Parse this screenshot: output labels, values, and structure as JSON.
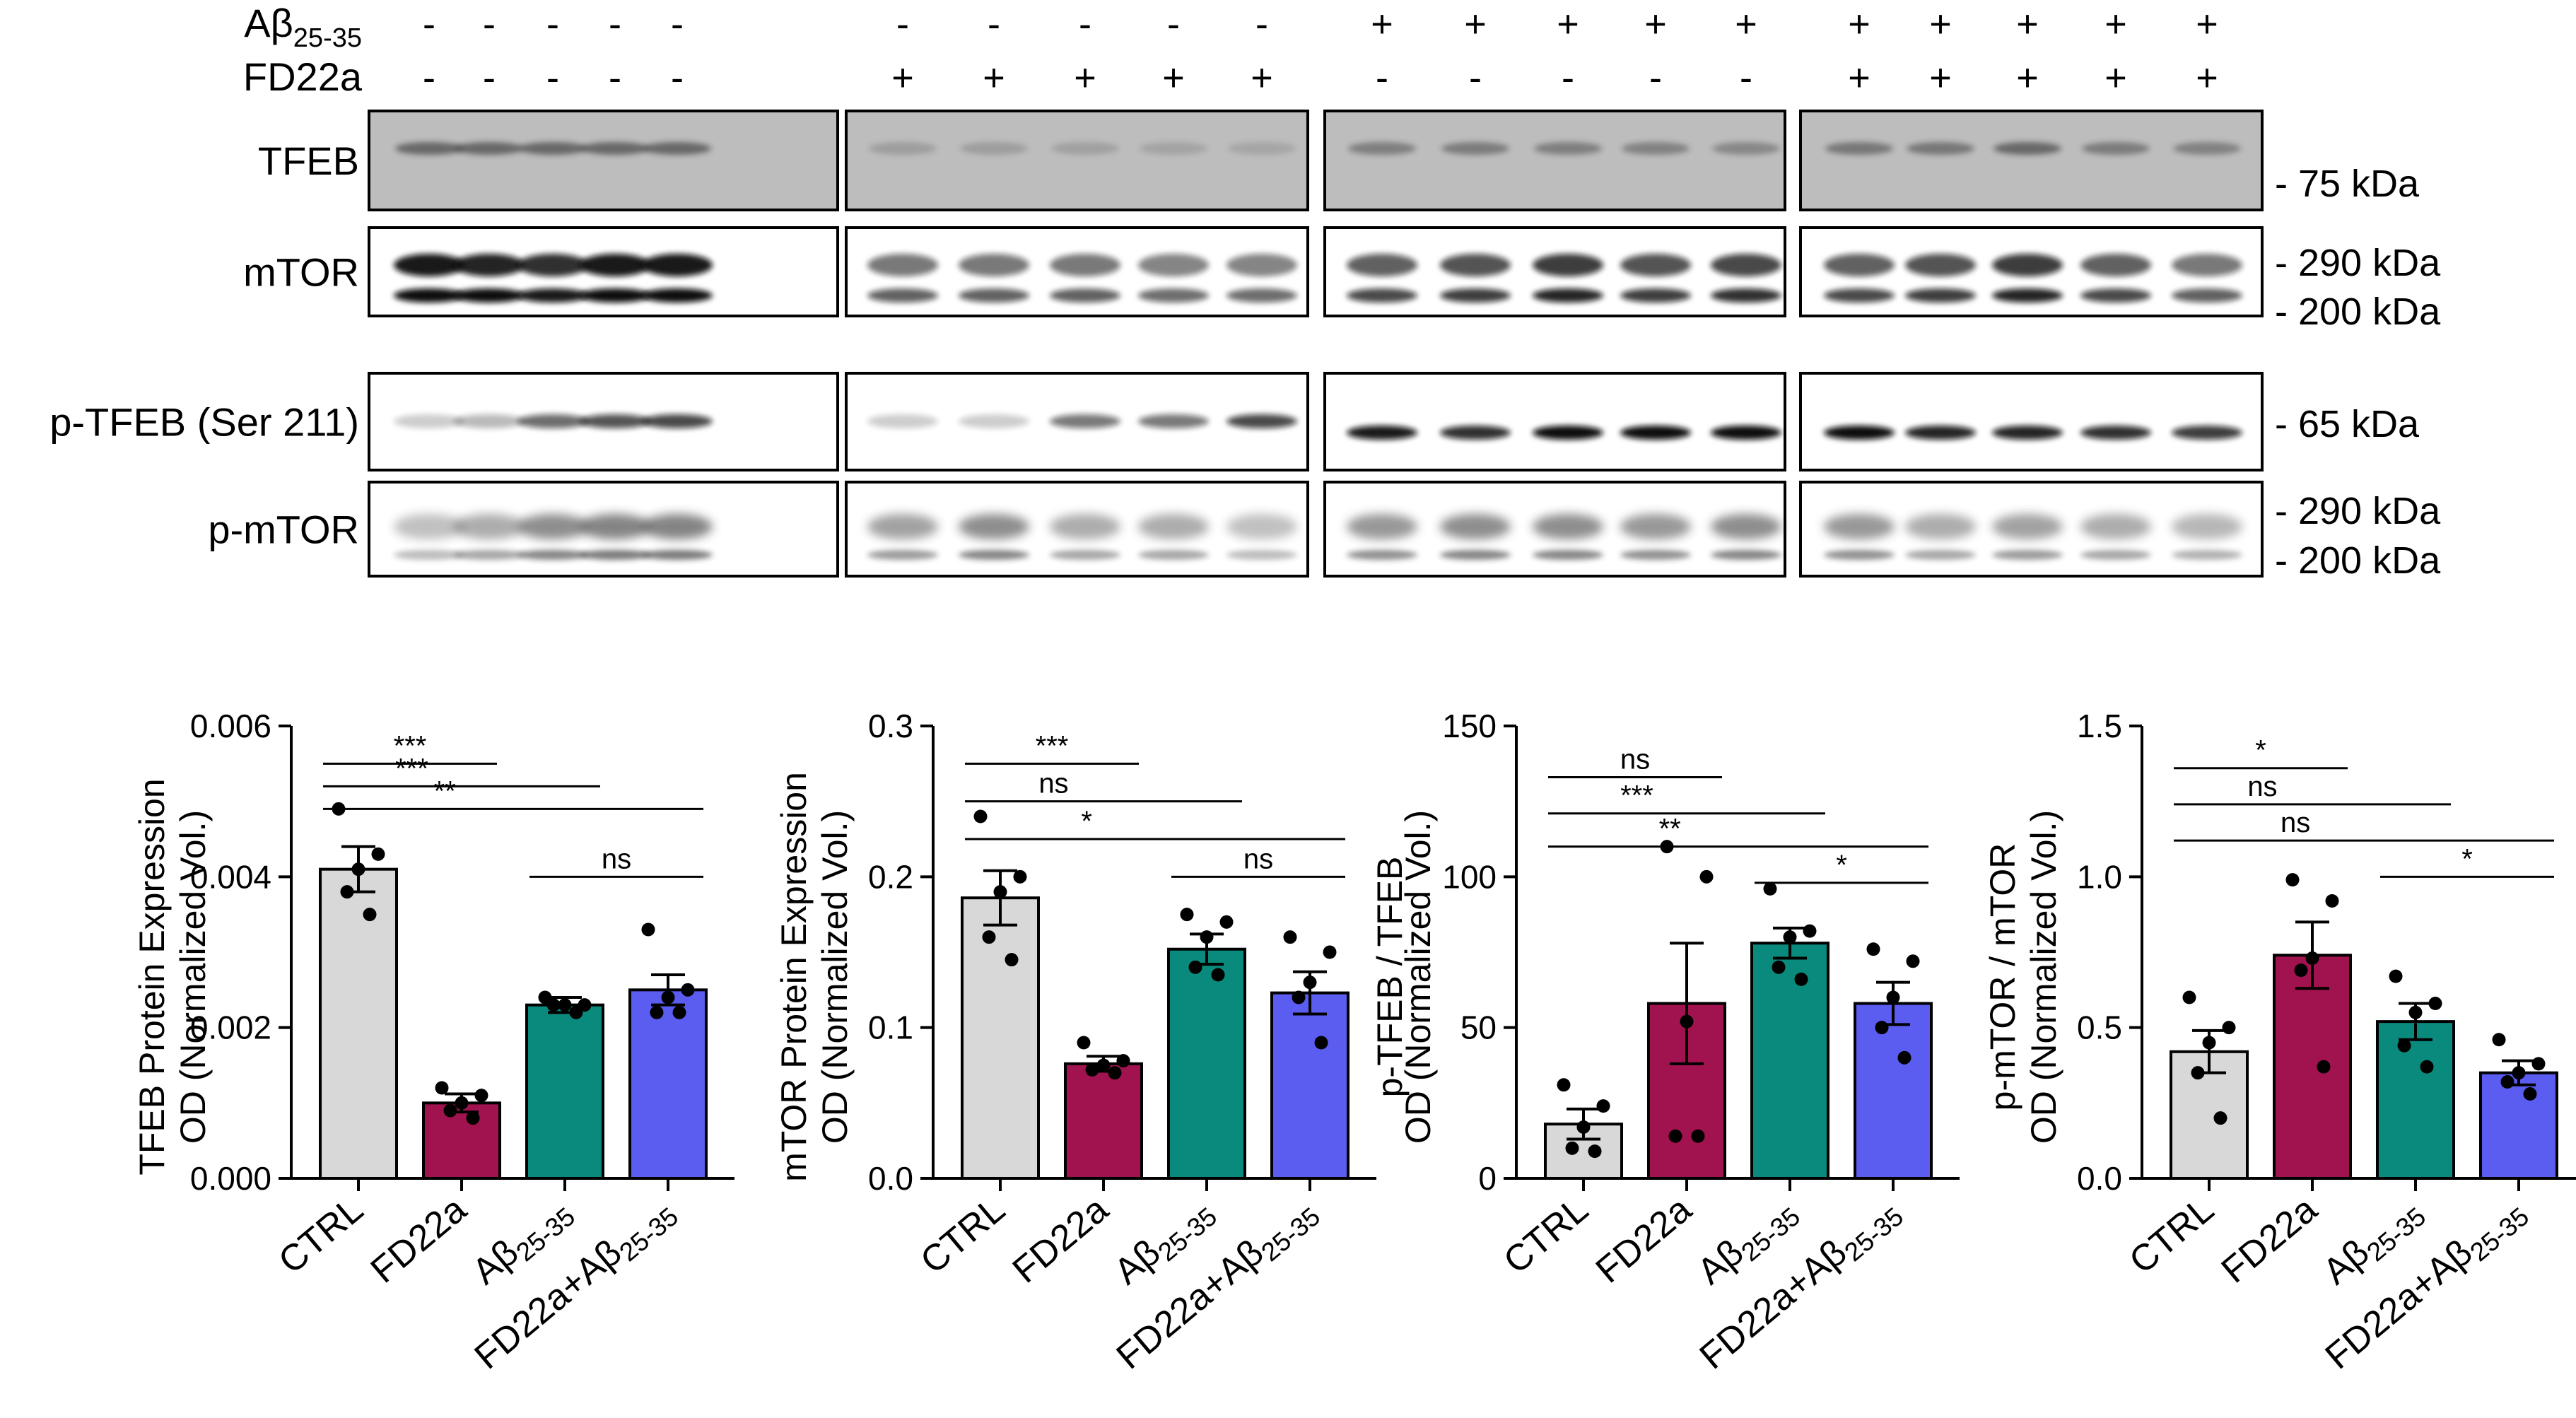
{
  "blot": {
    "treatments": [
      {
        "label": "Aβ",
        "sub": "25-35",
        "signs": [
          "-",
          "-",
          "-",
          "-",
          "-",
          "-",
          "-",
          "-",
          "-",
          "-",
          "+",
          "+",
          "+",
          "+",
          "+",
          "+",
          "+",
          "+",
          "+",
          "+"
        ]
      },
      {
        "label": "FD22a",
        "sub": "",
        "signs": [
          "-",
          "-",
          "-",
          "-",
          "-",
          "+",
          "+",
          "+",
          "+",
          "+",
          "-",
          "-",
          "-",
          "-",
          "-",
          "+",
          "+",
          "+",
          "+",
          "+"
        ]
      }
    ],
    "rows": [
      {
        "label": "TFEB",
        "mw": [
          "- 75 kDa"
        ]
      },
      {
        "label": "mTOR",
        "mw": [
          "- 290 kDa",
          "- 200 kDa"
        ]
      },
      {
        "label": "p-TFEB (Ser 211)",
        "mw": [
          "- 65 kDa"
        ]
      },
      {
        "label": "p-mTOR",
        "mw": [
          "- 290 kDa",
          "- 200 kDa"
        ]
      }
    ]
  },
  "chart_data": [
    {
      "type": "bar",
      "ylabel": "TFEB Protein Expression",
      "ylabel2": "OD (Normalized Vol.)",
      "ylim": [
        0,
        0.006
      ],
      "yticks": [
        "0.000",
        "0.002",
        "0.004",
        "0.006"
      ],
      "categories": [
        "CTRL",
        "FD22a",
        "Aβ25-35",
        "FD22a+Aβ25-35"
      ],
      "values": [
        0.0041,
        0.001,
        0.0023,
        0.0025
      ],
      "sem": [
        0.0003,
        0.00012,
        0.0001,
        0.0002
      ],
      "points": [
        [
          0.0049,
          0.0043,
          0.0041,
          0.0038,
          0.0035
        ],
        [
          0.0012,
          0.0011,
          0.001,
          0.0009,
          0.0008
        ],
        [
          0.0024,
          0.0023,
          0.0023,
          0.0023,
          0.0022
        ],
        [
          0.0033,
          0.0025,
          0.0024,
          0.0022,
          0.0022
        ]
      ],
      "colors": [
        "#d8d8d8",
        "#a0134e",
        "#0a8a7c",
        "#5b5cf0"
      ],
      "comparisons": [
        {
          "from": 0,
          "to": 1,
          "label": "***",
          "y": 0.0055
        },
        {
          "from": 0,
          "to": 2,
          "label": "***",
          "y": 0.0052
        },
        {
          "from": 0,
          "to": 3,
          "label": "**",
          "y": 0.0049
        },
        {
          "from": 2,
          "to": 3,
          "label": "ns",
          "y": 0.004
        }
      ]
    },
    {
      "type": "bar",
      "ylabel": "mTOR Protein Expression",
      "ylabel2": "OD (Normalized Vol.)",
      "ylim": [
        0,
        0.3
      ],
      "yticks": [
        "0.0",
        "0.1",
        "0.2",
        "0.3"
      ],
      "categories": [
        "CTRL",
        "FD22a",
        "Aβ25-35",
        "FD22a+Aβ25-35"
      ],
      "values": [
        0.186,
        0.076,
        0.152,
        0.123
      ],
      "sem": [
        0.018,
        0.005,
        0.01,
        0.014
      ],
      "points": [
        [
          0.24,
          0.2,
          0.19,
          0.16,
          0.145
        ],
        [
          0.09,
          0.078,
          0.075,
          0.072,
          0.07
        ],
        [
          0.175,
          0.17,
          0.16,
          0.14,
          0.135
        ],
        [
          0.16,
          0.15,
          0.13,
          0.12,
          0.09
        ]
      ],
      "colors": [
        "#d8d8d8",
        "#a0134e",
        "#0a8a7c",
        "#5b5cf0"
      ],
      "comparisons": [
        {
          "from": 0,
          "to": 1,
          "label": "***",
          "y": 0.275
        },
        {
          "from": 0,
          "to": 2,
          "label": "ns",
          "y": 0.25
        },
        {
          "from": 0,
          "to": 3,
          "label": "*",
          "y": 0.225
        },
        {
          "from": 2,
          "to": 3,
          "label": "ns",
          "y": 0.2
        }
      ]
    },
    {
      "type": "bar",
      "ylabel": "p-TFEB / TFEB",
      "ylabel2": "OD (Normalized Vol.)",
      "ylim": [
        0,
        150
      ],
      "yticks": [
        "0",
        "50",
        "100",
        "150"
      ],
      "categories": [
        "CTRL",
        "FD22a",
        "Aβ25-35",
        "FD22a+Aβ25-35"
      ],
      "values": [
        18,
        58,
        78,
        58
      ],
      "sem": [
        5,
        20,
        5,
        7
      ],
      "points": [
        [
          31,
          24,
          17,
          10,
          9
        ],
        [
          110,
          100,
          52,
          14,
          14
        ],
        [
          96,
          82,
          80,
          70,
          66
        ],
        [
          76,
          72,
          60,
          50,
          40
        ]
      ],
      "colors": [
        "#d8d8d8",
        "#a0134e",
        "#0a8a7c",
        "#5b5cf0"
      ],
      "comparisons": [
        {
          "from": 0,
          "to": 1,
          "label": "ns",
          "y": 133
        },
        {
          "from": 0,
          "to": 2,
          "label": "***",
          "y": 121
        },
        {
          "from": 0,
          "to": 3,
          "label": "**",
          "y": 110
        },
        {
          "from": 2,
          "to": 3,
          "label": "*",
          "y": 98
        }
      ]
    },
    {
      "type": "bar",
      "ylabel": "p-mTOR / mTOR",
      "ylabel2": "OD (Normalized Vol.)",
      "ylim": [
        0,
        1.5
      ],
      "yticks": [
        "0.0",
        "0.5",
        "1.0",
        "1.5"
      ],
      "categories": [
        "CTRL",
        "FD22a",
        "Aβ25-35",
        "FD22a+Aβ25-35"
      ],
      "values": [
        0.42,
        0.74,
        0.52,
        0.35
      ],
      "sem": [
        0.07,
        0.11,
        0.06,
        0.04
      ],
      "points": [
        [
          0.6,
          0.5,
          0.45,
          0.35,
          0.2
        ],
        [
          0.99,
          0.92,
          0.73,
          0.69,
          0.37
        ],
        [
          0.67,
          0.58,
          0.55,
          0.44,
          0.37
        ],
        [
          0.46,
          0.38,
          0.35,
          0.32,
          0.28
        ]
      ],
      "colors": [
        "#d8d8d8",
        "#a0134e",
        "#0a8a7c",
        "#5b5cf0"
      ],
      "comparisons": [
        {
          "from": 0,
          "to": 1,
          "label": "*",
          "y": 1.36
        },
        {
          "from": 0,
          "to": 2,
          "label": "ns",
          "y": 1.24
        },
        {
          "from": 0,
          "to": 3,
          "label": "ns",
          "y": 1.12
        },
        {
          "from": 2,
          "to": 3,
          "label": "*",
          "y": 1.0
        }
      ]
    }
  ]
}
